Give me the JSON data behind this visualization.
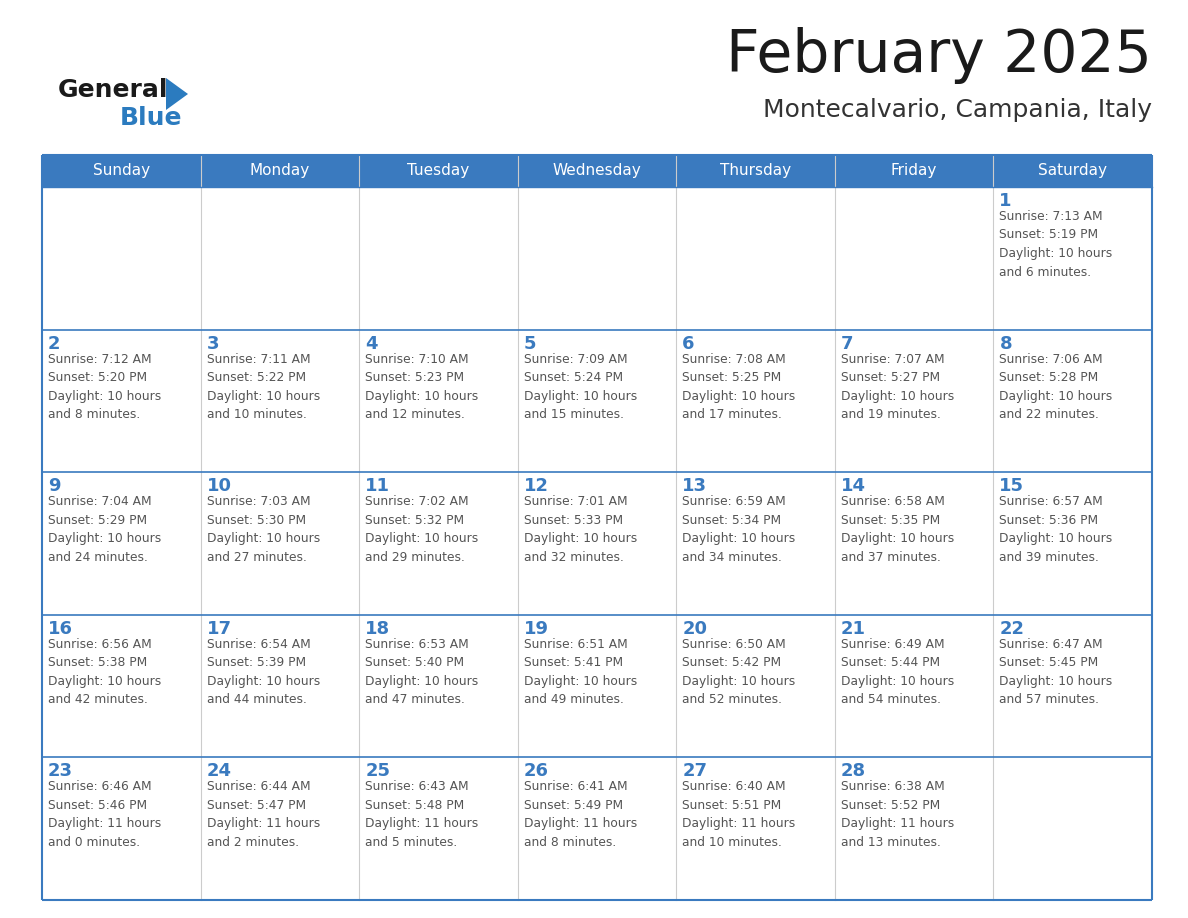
{
  "title": "February 2025",
  "subtitle": "Montecalvario, Campania, Italy",
  "days_of_week": [
    "Sunday",
    "Monday",
    "Tuesday",
    "Wednesday",
    "Thursday",
    "Friday",
    "Saturday"
  ],
  "header_bg": "#3a7abf",
  "header_text": "#ffffff",
  "cell_bg": "#f5f5f5",
  "cell_bg_white": "#ffffff",
  "border_color": "#3a7abf",
  "row_line_color": "#4a7fb5",
  "day_number_color": "#3a7abf",
  "info_text_color": "#555555",
  "title_color": "#1a1a1a",
  "subtitle_color": "#333333",
  "logo_text_color": "#1a1a1a",
  "logo_blue_color": "#2b7bbf",
  "weeks": [
    [
      {
        "day": null,
        "info": null
      },
      {
        "day": null,
        "info": null
      },
      {
        "day": null,
        "info": null
      },
      {
        "day": null,
        "info": null
      },
      {
        "day": null,
        "info": null
      },
      {
        "day": null,
        "info": null
      },
      {
        "day": 1,
        "info": "Sunrise: 7:13 AM\nSunset: 5:19 PM\nDaylight: 10 hours\nand 6 minutes."
      }
    ],
    [
      {
        "day": 2,
        "info": "Sunrise: 7:12 AM\nSunset: 5:20 PM\nDaylight: 10 hours\nand 8 minutes."
      },
      {
        "day": 3,
        "info": "Sunrise: 7:11 AM\nSunset: 5:22 PM\nDaylight: 10 hours\nand 10 minutes."
      },
      {
        "day": 4,
        "info": "Sunrise: 7:10 AM\nSunset: 5:23 PM\nDaylight: 10 hours\nand 12 minutes."
      },
      {
        "day": 5,
        "info": "Sunrise: 7:09 AM\nSunset: 5:24 PM\nDaylight: 10 hours\nand 15 minutes."
      },
      {
        "day": 6,
        "info": "Sunrise: 7:08 AM\nSunset: 5:25 PM\nDaylight: 10 hours\nand 17 minutes."
      },
      {
        "day": 7,
        "info": "Sunrise: 7:07 AM\nSunset: 5:27 PM\nDaylight: 10 hours\nand 19 minutes."
      },
      {
        "day": 8,
        "info": "Sunrise: 7:06 AM\nSunset: 5:28 PM\nDaylight: 10 hours\nand 22 minutes."
      }
    ],
    [
      {
        "day": 9,
        "info": "Sunrise: 7:04 AM\nSunset: 5:29 PM\nDaylight: 10 hours\nand 24 minutes."
      },
      {
        "day": 10,
        "info": "Sunrise: 7:03 AM\nSunset: 5:30 PM\nDaylight: 10 hours\nand 27 minutes."
      },
      {
        "day": 11,
        "info": "Sunrise: 7:02 AM\nSunset: 5:32 PM\nDaylight: 10 hours\nand 29 minutes."
      },
      {
        "day": 12,
        "info": "Sunrise: 7:01 AM\nSunset: 5:33 PM\nDaylight: 10 hours\nand 32 minutes."
      },
      {
        "day": 13,
        "info": "Sunrise: 6:59 AM\nSunset: 5:34 PM\nDaylight: 10 hours\nand 34 minutes."
      },
      {
        "day": 14,
        "info": "Sunrise: 6:58 AM\nSunset: 5:35 PM\nDaylight: 10 hours\nand 37 minutes."
      },
      {
        "day": 15,
        "info": "Sunrise: 6:57 AM\nSunset: 5:36 PM\nDaylight: 10 hours\nand 39 minutes."
      }
    ],
    [
      {
        "day": 16,
        "info": "Sunrise: 6:56 AM\nSunset: 5:38 PM\nDaylight: 10 hours\nand 42 minutes."
      },
      {
        "day": 17,
        "info": "Sunrise: 6:54 AM\nSunset: 5:39 PM\nDaylight: 10 hours\nand 44 minutes."
      },
      {
        "day": 18,
        "info": "Sunrise: 6:53 AM\nSunset: 5:40 PM\nDaylight: 10 hours\nand 47 minutes."
      },
      {
        "day": 19,
        "info": "Sunrise: 6:51 AM\nSunset: 5:41 PM\nDaylight: 10 hours\nand 49 minutes."
      },
      {
        "day": 20,
        "info": "Sunrise: 6:50 AM\nSunset: 5:42 PM\nDaylight: 10 hours\nand 52 minutes."
      },
      {
        "day": 21,
        "info": "Sunrise: 6:49 AM\nSunset: 5:44 PM\nDaylight: 10 hours\nand 54 minutes."
      },
      {
        "day": 22,
        "info": "Sunrise: 6:47 AM\nSunset: 5:45 PM\nDaylight: 10 hours\nand 57 minutes."
      }
    ],
    [
      {
        "day": 23,
        "info": "Sunrise: 6:46 AM\nSunset: 5:46 PM\nDaylight: 11 hours\nand 0 minutes."
      },
      {
        "day": 24,
        "info": "Sunrise: 6:44 AM\nSunset: 5:47 PM\nDaylight: 11 hours\nand 2 minutes."
      },
      {
        "day": 25,
        "info": "Sunrise: 6:43 AM\nSunset: 5:48 PM\nDaylight: 11 hours\nand 5 minutes."
      },
      {
        "day": 26,
        "info": "Sunrise: 6:41 AM\nSunset: 5:49 PM\nDaylight: 11 hours\nand 8 minutes."
      },
      {
        "day": 27,
        "info": "Sunrise: 6:40 AM\nSunset: 5:51 PM\nDaylight: 11 hours\nand 10 minutes."
      },
      {
        "day": 28,
        "info": "Sunrise: 6:38 AM\nSunset: 5:52 PM\nDaylight: 11 hours\nand 13 minutes."
      },
      {
        "day": null,
        "info": null
      }
    ]
  ]
}
